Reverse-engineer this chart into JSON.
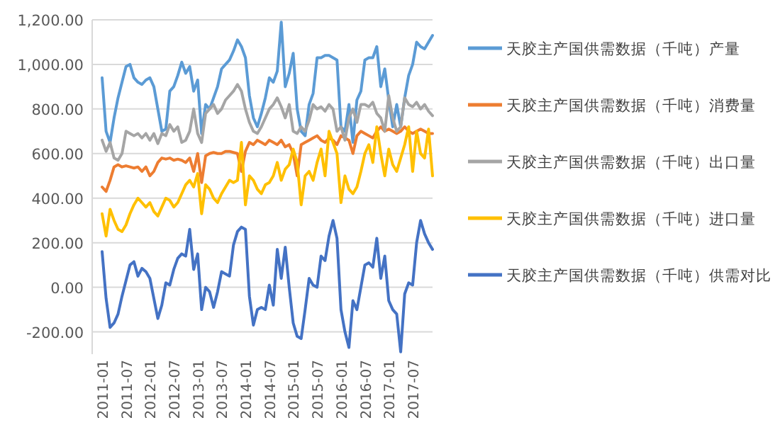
{
  "chart_data": {
    "type": "line",
    "categories": [
      "2011-01",
      null,
      null,
      null,
      null,
      null,
      "2011-07",
      null,
      null,
      null,
      null,
      null,
      "2012-01",
      null,
      null,
      null,
      null,
      null,
      "2012-07",
      null,
      null,
      null,
      null,
      null,
      "2013-01",
      null,
      null,
      null,
      null,
      null,
      "2013-07",
      null,
      null,
      null,
      null,
      null,
      "2014-01",
      null,
      null,
      null,
      null,
      null,
      "2014-07",
      null,
      null,
      null,
      null,
      null,
      "2015-01",
      null,
      null,
      null,
      null,
      null,
      "2015-07",
      null,
      null,
      null,
      null,
      null,
      "2016-01",
      null,
      null,
      null,
      null,
      null,
      "2016-07",
      null,
      null,
      null,
      null,
      null,
      "2017-01",
      null,
      null,
      null,
      null,
      null,
      "2017-07",
      null,
      null,
      null,
      null,
      null
    ],
    "series": [
      {
        "name": "天胶主产国供需数据（千吨）产量",
        "color": "#5b9bd5",
        "values": [
          940,
          700,
          650,
          760,
          850,
          920,
          990,
          1000,
          940,
          920,
          910,
          930,
          940,
          900,
          800,
          700,
          710,
          880,
          900,
          950,
          1010,
          960,
          990,
          880,
          930,
          690,
          820,
          800,
          850,
          900,
          980,
          1000,
          1020,
          1060,
          1110,
          1080,
          1030,
          860,
          760,
          720,
          780,
          850,
          940,
          920,
          970,
          1190,
          900,
          960,
          1050,
          800,
          700,
          680,
          820,
          870,
          1030,
          1030,
          1040,
          1040,
          1030,
          1020,
          720,
          700,
          820,
          650,
          840,
          880,
          1020,
          1030,
          1030,
          1080,
          900,
          980,
          840,
          720,
          820,
          720,
          850,
          950,
          1000,
          1100,
          1080,
          1070,
          1100,
          1130
        ]
      },
      {
        "name": "天胶主产国供需数据（千吨）消费量",
        "color": "#ed7d31",
        "values": [
          450,
          430,
          480,
          540,
          550,
          540,
          545,
          540,
          535,
          540,
          520,
          540,
          500,
          520,
          560,
          580,
          575,
          580,
          570,
          575,
          570,
          560,
          580,
          520,
          600,
          470,
          590,
          600,
          605,
          600,
          600,
          610,
          610,
          605,
          600,
          520,
          610,
          650,
          640,
          660,
          650,
          640,
          660,
          650,
          640,
          660,
          630,
          640,
          600,
          500,
          640,
          650,
          660,
          670,
          680,
          660,
          650,
          670,
          660,
          640,
          680,
          670,
          660,
          600,
          680,
          700,
          690,
          680,
          670,
          700,
          720,
          700,
          710,
          700,
          690,
          700,
          720,
          700,
          690,
          700,
          710,
          700,
          690,
          690
        ]
      },
      {
        "name": "天胶主产国供需数据（千吨）出口量",
        "color": "#a5a5a5",
        "values": [
          660,
          610,
          650,
          580,
          570,
          600,
          700,
          690,
          680,
          690,
          670,
          690,
          660,
          690,
          645,
          690,
          680,
          730,
          700,
          720,
          650,
          660,
          700,
          800,
          690,
          650,
          780,
          800,
          820,
          780,
          800,
          840,
          860,
          880,
          910,
          880,
          800,
          740,
          700,
          690,
          720,
          760,
          800,
          820,
          850,
          810,
          760,
          820,
          700,
          690,
          720,
          700,
          750,
          820,
          800,
          810,
          790,
          820,
          800,
          700,
          720,
          660,
          760,
          800,
          740,
          820,
          820,
          810,
          830,
          780,
          760,
          700,
          860,
          760,
          700,
          720,
          850,
          820,
          810,
          830,
          800,
          820,
          790,
          770
        ]
      },
      {
        "name": "天胶主产国供需数据（千吨）进口量",
        "color": "#ffc000",
        "values": [
          330,
          230,
          350,
          300,
          260,
          250,
          280,
          330,
          370,
          400,
          380,
          360,
          380,
          340,
          320,
          360,
          400,
          390,
          360,
          380,
          420,
          460,
          480,
          450,
          510,
          330,
          460,
          440,
          400,
          380,
          420,
          450,
          480,
          470,
          480,
          650,
          370,
          500,
          480,
          440,
          420,
          460,
          470,
          500,
          560,
          480,
          530,
          550,
          620,
          560,
          370,
          500,
          520,
          480,
          560,
          620,
          500,
          700,
          650,
          600,
          380,
          500,
          440,
          420,
          450,
          520,
          600,
          640,
          560,
          720,
          600,
          500,
          620,
          550,
          520,
          580,
          640,
          720,
          520,
          700,
          600,
          580,
          710,
          500
        ]
      },
      {
        "name": "天胶主产国供需数据（千吨）供需对比",
        "color": "#4472c4",
        "values": [
          160,
          -50,
          -180,
          -160,
          -120,
          -40,
          30,
          100,
          115,
          50,
          85,
          70,
          40,
          -50,
          -140,
          -80,
          20,
          10,
          80,
          130,
          150,
          140,
          260,
          80,
          150,
          -100,
          0,
          -20,
          -90,
          -20,
          70,
          60,
          50,
          190,
          250,
          270,
          260,
          -40,
          -170,
          -100,
          -90,
          -100,
          10,
          -80,
          170,
          40,
          180,
          0,
          -160,
          -220,
          -230,
          -100,
          40,
          10,
          0,
          140,
          120,
          230,
          300,
          220,
          -100,
          -200,
          -270,
          -60,
          -100,
          0,
          100,
          110,
          90,
          220,
          40,
          140,
          -60,
          -100,
          -120,
          -290,
          -30,
          20,
          10,
          200,
          300,
          240,
          200,
          170
        ]
      }
    ],
    "ylim": [
      -300,
      1200
    ],
    "yticks": [
      {
        "value": -200,
        "label": "-200.00"
      },
      {
        "value": 0,
        "label": "0.00"
      },
      {
        "value": 200,
        "label": "200.00"
      },
      {
        "value": 400,
        "label": "400.00"
      },
      {
        "value": 600,
        "label": "600.00"
      },
      {
        "value": 800,
        "label": "800.00"
      },
      {
        "value": 1000,
        "label": "1,000.00"
      },
      {
        "value": 1200,
        "label": "1,200.00"
      }
    ],
    "grid": "y",
    "legend": "right"
  }
}
